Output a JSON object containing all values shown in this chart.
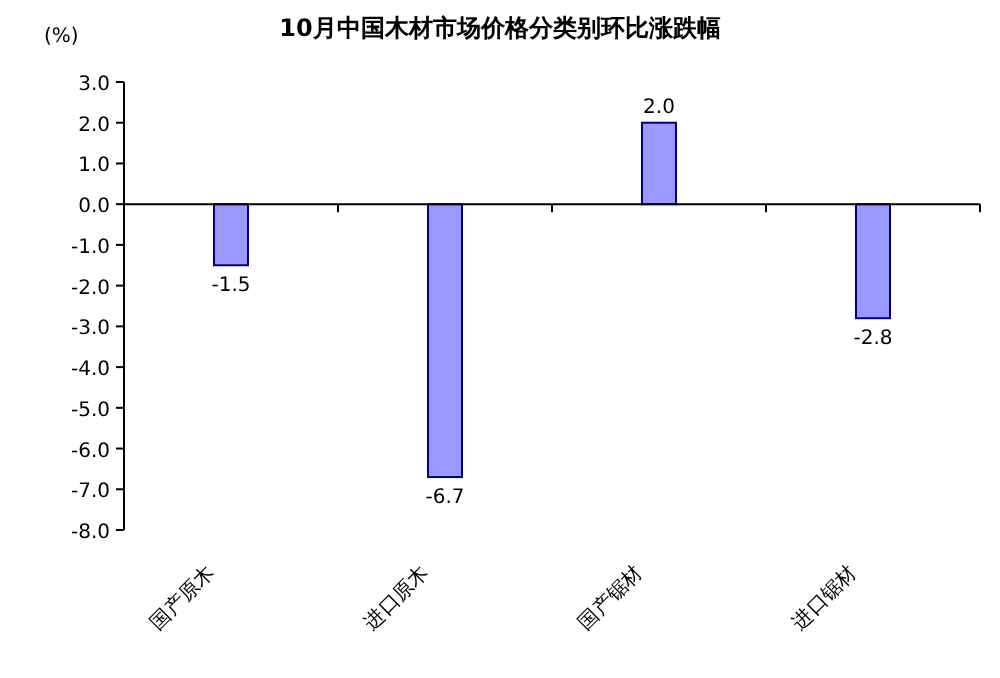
{
  "chart_data": {
    "type": "bar",
    "title": "10月中国木材市场价格分类别环比涨跌幅",
    "ylabel": "(%)",
    "categories": [
      "国产原木",
      "进口原木",
      "国产锯材",
      "进口锯材"
    ],
    "values": [
      -1.5,
      -6.7,
      2.0,
      -2.8
    ],
    "value_labels": [
      "-1.5",
      "-6.7",
      "2.0",
      "-2.8"
    ],
    "color": "#9999ff",
    "ylim": [
      -8,
      3
    ],
    "yticks": [
      {
        "value": 3,
        "label": "3.0"
      },
      {
        "value": 2,
        "label": "2.0"
      },
      {
        "value": 1,
        "label": "1.0"
      },
      {
        "value": 0,
        "label": "0.0"
      },
      {
        "value": -1,
        "label": "-1.0"
      },
      {
        "value": -2,
        "label": "-2.0"
      },
      {
        "value": -3,
        "label": "-3.0"
      },
      {
        "value": -4,
        "label": "-4.0"
      },
      {
        "value": -5,
        "label": "-5.0"
      },
      {
        "value": -6,
        "label": "-6.0"
      },
      {
        "value": -7,
        "label": "-7.0"
      },
      {
        "value": -8,
        "label": "-8.0"
      }
    ],
    "tick_labels": "xy"
  }
}
